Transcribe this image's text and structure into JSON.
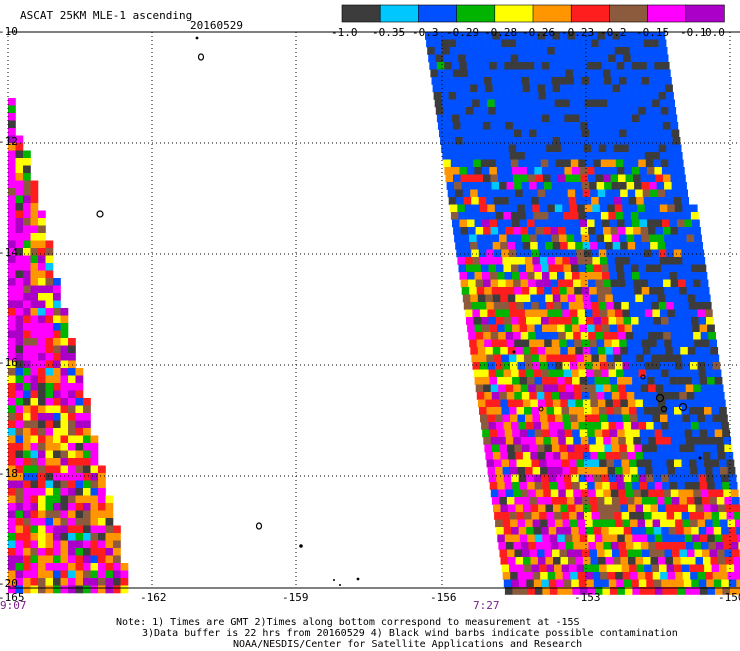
{
  "header": {
    "product": "ASCAT 25KM MLE-1 ascending",
    "date": "20160529"
  },
  "colorbar": {
    "labels": [
      "-1.0",
      "-0.35",
      "-0.3",
      "-0.29",
      "-0.28",
      "-0.26",
      "-0.23",
      "-0.2",
      "-0.15",
      "-0.1",
      "0.0"
    ],
    "colors": [
      "#3c3c3c",
      "#00c8ff",
      "#0050ff",
      "#00b400",
      "#ffff00",
      "#ff9600",
      "#ff1e1e",
      "#8c5a3c",
      "#ff00ff",
      "#aa00c8"
    ]
  },
  "map": {
    "lon_labels": [
      "-165",
      "-162",
      "-159",
      "-156",
      "-153",
      "-150"
    ],
    "lat_labels": [
      "-10",
      "-12",
      "-14",
      "-16",
      "-18",
      "-20"
    ],
    "time_labels": [
      "9:07",
      "7:27"
    ]
  },
  "notes": {
    "line1": "Note: 1) Times are GMT 2)Times along bottom correspond to measurement at -15S",
    "line2": "3)Data buffer is 22 hrs from 20160529 4) Black wind barbs indicate possible contamination",
    "line3": "NOAA/NESDIS/Center for Satellite Applications and Research"
  }
}
